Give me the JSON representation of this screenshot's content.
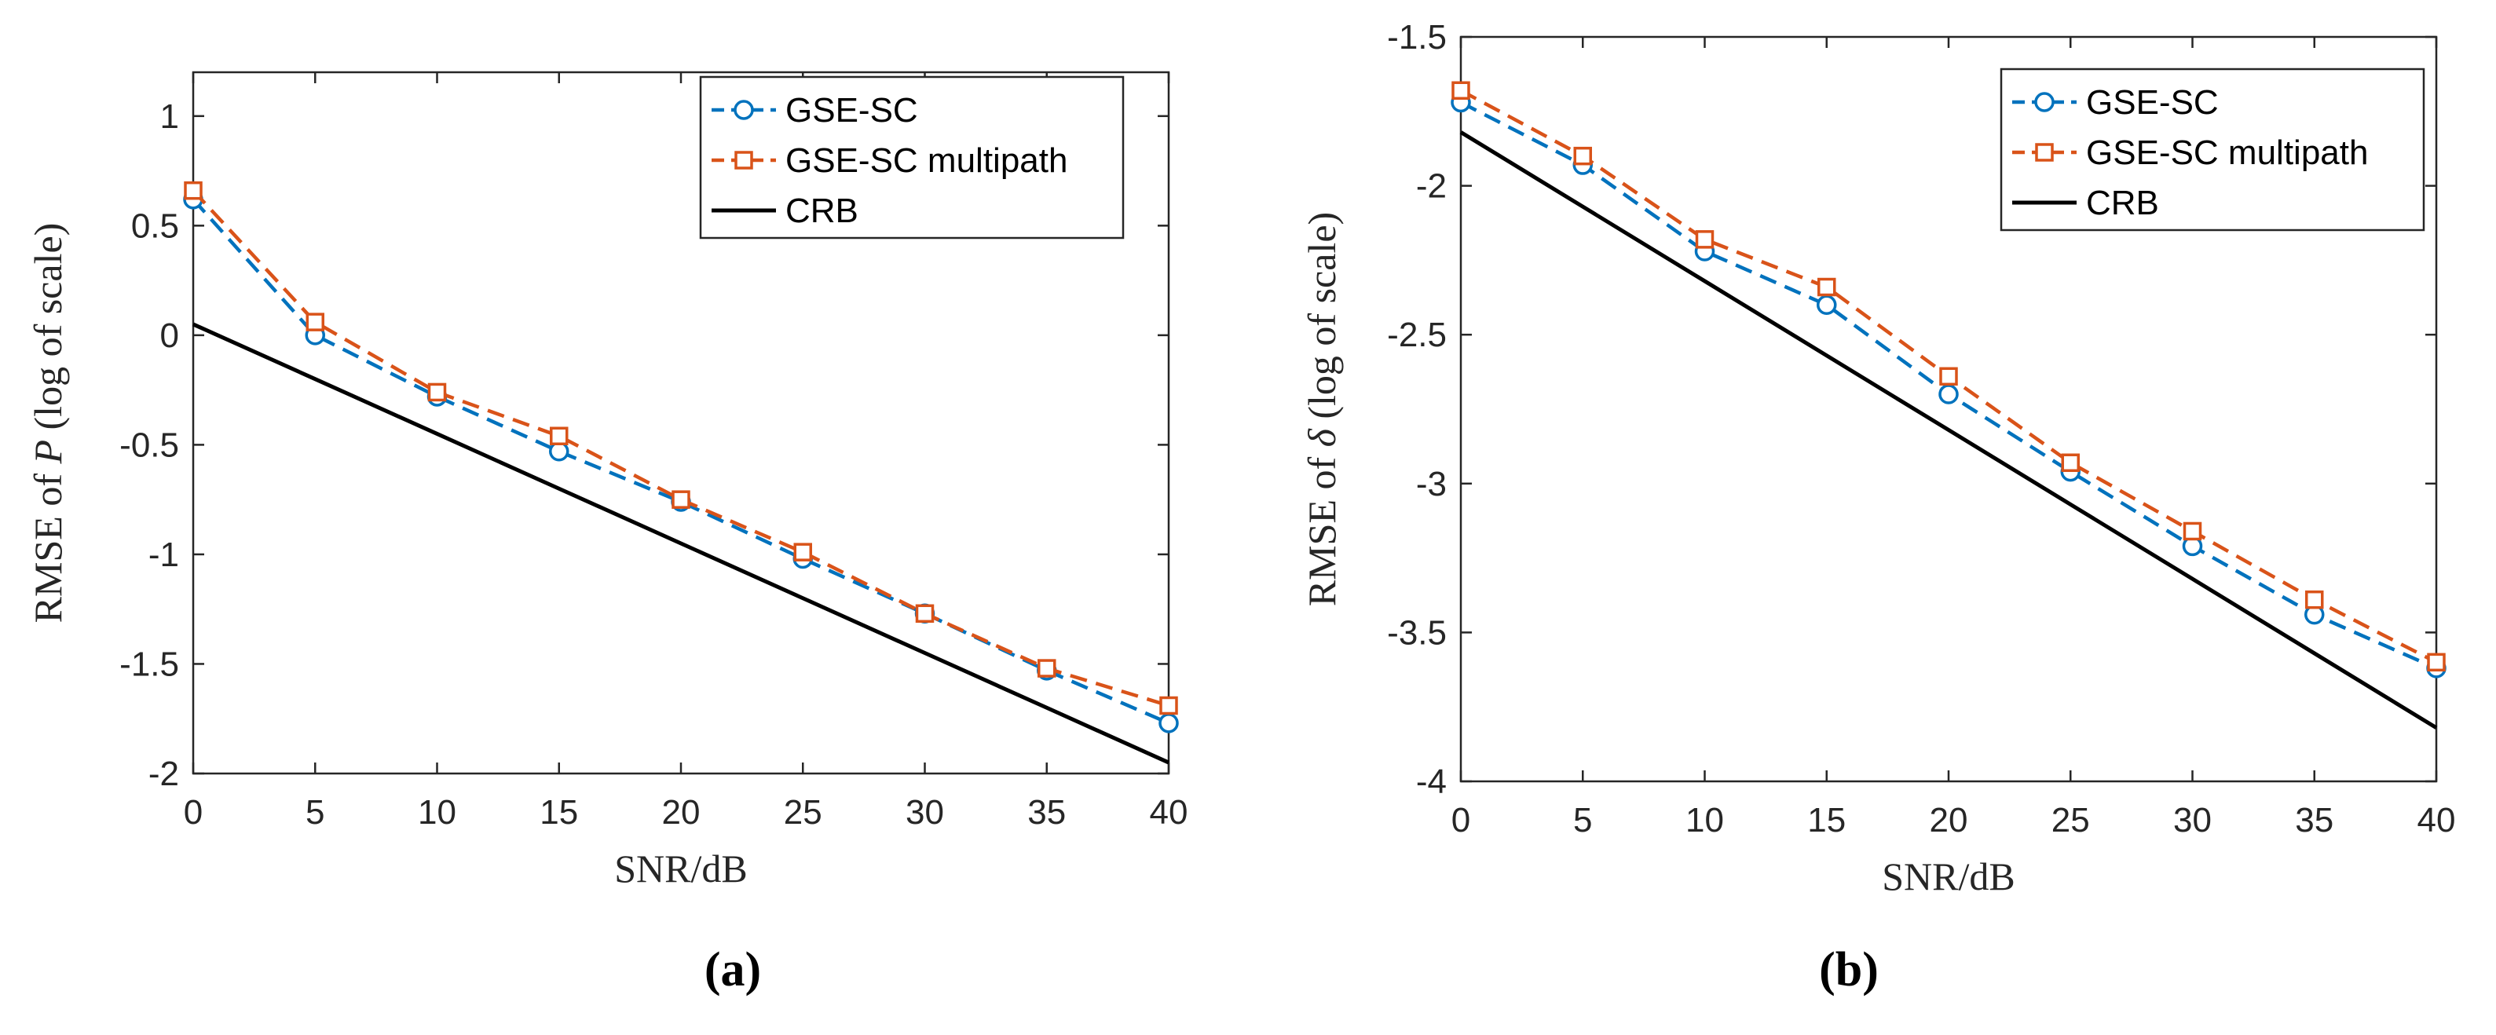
{
  "colors": {
    "gse_sc": "#0072BD",
    "gse_sc_multipath": "#D95319",
    "crb": "#000000",
    "axes": "#262626"
  },
  "chart_data": [
    {
      "type": "line",
      "panel_label": "(a)",
      "xlabel": "SNR/dB",
      "ylabel": "RMSE of P (log of scale)",
      "ylabel_parts": {
        "prefix": "RMSE of ",
        "symbol": "P",
        "suffix": " (log of scale)"
      },
      "xlim": [
        0,
        40
      ],
      "ylim": [
        -2,
        1.2
      ],
      "xticks": [
        0,
        5,
        10,
        15,
        20,
        25,
        30,
        35,
        40
      ],
      "yticks": [
        -2,
        -1.5,
        -1,
        -0.5,
        0,
        0.5,
        1
      ],
      "xtick_labels": [
        "0",
        "5",
        "10",
        "15",
        "20",
        "25",
        "30",
        "35",
        "40"
      ],
      "ytick_labels": [
        "-2",
        "-1.5",
        "-1",
        "-0.5",
        "0",
        "0.5",
        "1"
      ],
      "grid": false,
      "legend_position": "top-right",
      "x": [
        0,
        5,
        10,
        15,
        20,
        25,
        30,
        35,
        40
      ],
      "series": [
        {
          "name": "GSE-SC",
          "style": "dashed",
          "marker": "circle",
          "color": "#0072BD",
          "values": [
            0.62,
            0.0,
            -0.28,
            -0.53,
            -0.76,
            -1.02,
            -1.27,
            -1.53,
            -1.77
          ]
        },
        {
          "name": "GSE-SC multipath",
          "style": "dashed",
          "marker": "square",
          "color": "#D95319",
          "values": [
            0.66,
            0.06,
            -0.26,
            -0.46,
            -0.75,
            -0.99,
            -1.27,
            -1.52,
            -1.69
          ]
        },
        {
          "name": "CRB",
          "style": "solid",
          "marker": "none",
          "color": "#000000",
          "values": [
            0.05,
            -0.2,
            -0.45,
            -0.7,
            -0.95,
            -1.2,
            -1.45,
            -1.7,
            -1.95
          ]
        }
      ]
    },
    {
      "type": "line",
      "panel_label": "(b)",
      "xlabel": "SNR/dB",
      "ylabel": "RMSE of δ (log of scale)",
      "ylabel_parts": {
        "prefix": "RMSE of ",
        "symbol": "δ",
        "suffix": " (log of scale)"
      },
      "xlim": [
        0,
        40
      ],
      "ylim": [
        -4,
        -1.5
      ],
      "xticks": [
        0,
        5,
        10,
        15,
        20,
        25,
        30,
        35,
        40
      ],
      "yticks": [
        -4,
        -3.5,
        -3,
        -2.5,
        -2,
        -1.5
      ],
      "xtick_labels": [
        "0",
        "5",
        "10",
        "15",
        "20",
        "25",
        "30",
        "35",
        "40"
      ],
      "ytick_labels": [
        "-4",
        "-3.5",
        "-3",
        "-2.5",
        "-2",
        "-1.5"
      ],
      "grid": false,
      "legend_position": "top-right",
      "x": [
        0,
        5,
        10,
        15,
        20,
        25,
        30,
        35,
        40
      ],
      "series": [
        {
          "name": "GSE-SC",
          "style": "dashed",
          "marker": "circle",
          "color": "#0072BD",
          "values": [
            -1.72,
            -1.93,
            -2.22,
            -2.4,
            -2.7,
            -2.96,
            -3.21,
            -3.44,
            -3.62
          ]
        },
        {
          "name": "GSE-SC multipath",
          "style": "dashed",
          "marker": "square",
          "color": "#D95319",
          "values": [
            -1.68,
            -1.9,
            -2.18,
            -2.34,
            -2.64,
            -2.93,
            -3.16,
            -3.39,
            -3.6
          ]
        },
        {
          "name": "CRB",
          "style": "solid",
          "marker": "none",
          "color": "#000000",
          "values": [
            -1.82,
            -2.07,
            -2.32,
            -2.57,
            -2.82,
            -3.07,
            -3.32,
            -3.57,
            -3.82
          ]
        }
      ]
    }
  ]
}
